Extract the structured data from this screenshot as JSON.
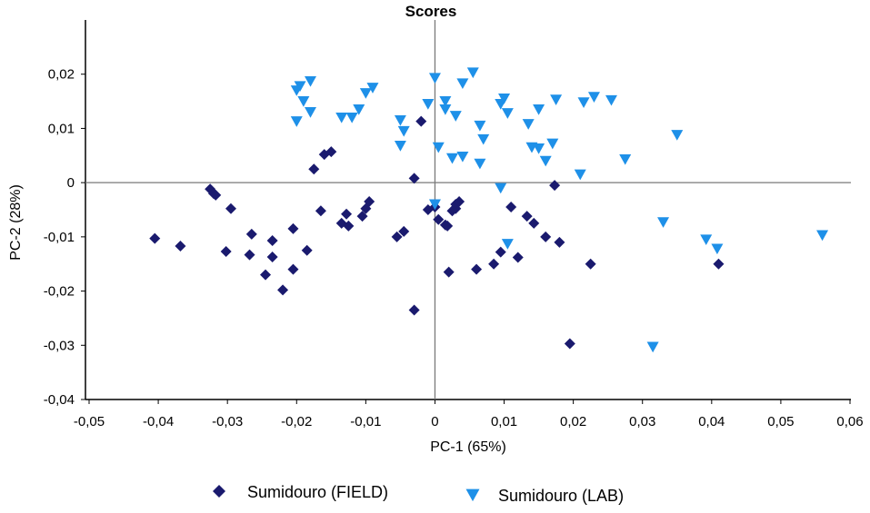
{
  "chart_data": {
    "type": "scatter",
    "title": "Scores",
    "xlabel": "PC-1 (65%)",
    "ylabel": "PC-2 (28%)",
    "xlim": [
      -0.05,
      0.06
    ],
    "ylim": [
      -0.04,
      0.03
    ],
    "x_ticks": [
      -0.05,
      -0.04,
      -0.03,
      -0.02,
      -0.01,
      0,
      0.01,
      0.02,
      0.03,
      0.04,
      0.05,
      0.06
    ],
    "x_tick_labels": [
      "-0,05",
      "-0,04",
      "-0,03",
      "-0,02",
      "-0,01",
      "0",
      "0,01",
      "0,02",
      "0,03",
      "0,04",
      "0,05",
      "0,06"
    ],
    "y_ticks": [
      -0.04,
      -0.03,
      -0.02,
      -0.01,
      0,
      0.01,
      0.02
    ],
    "y_tick_labels": [
      "-0,04",
      "-0,03",
      "-0,02",
      "-0,01",
      "0",
      "0,01",
      "0,02"
    ],
    "grid": false,
    "zero_lines": true,
    "legend_position": "bottom",
    "series": [
      {
        "name": "Sumidouro (FIELD)",
        "marker": "diamond",
        "color": "#1a1a6e",
        "points": [
          [
            -0.0405,
            -0.0103
          ],
          [
            -0.0368,
            -0.0117
          ],
          [
            -0.0325,
            -0.0012
          ],
          [
            -0.032,
            -0.002
          ],
          [
            -0.0317,
            -0.0023
          ],
          [
            -0.0295,
            -0.0048
          ],
          [
            -0.0302,
            -0.0127
          ],
          [
            -0.0265,
            -0.0095
          ],
          [
            -0.0268,
            -0.0133
          ],
          [
            -0.0245,
            -0.017
          ],
          [
            -0.0235,
            -0.0107
          ],
          [
            -0.0235,
            -0.0137
          ],
          [
            -0.022,
            -0.0198
          ],
          [
            -0.0205,
            -0.0085
          ],
          [
            -0.0205,
            -0.016
          ],
          [
            -0.0185,
            -0.0125
          ],
          [
            -0.0175,
            0.0025
          ],
          [
            -0.0165,
            -0.0052
          ],
          [
            -0.016,
            0.0052
          ],
          [
            -0.015,
            0.0057
          ],
          [
            -0.0135,
            -0.0075
          ],
          [
            -0.0128,
            -0.0058
          ],
          [
            -0.0125,
            -0.008
          ],
          [
            -0.0105,
            -0.0062
          ],
          [
            -0.01,
            -0.0048
          ],
          [
            -0.0095,
            -0.0035
          ],
          [
            -0.0055,
            -0.01
          ],
          [
            -0.0045,
            -0.009
          ],
          [
            -0.003,
            0.0008
          ],
          [
            -0.003,
            -0.0235
          ],
          [
            -0.002,
            0.0113
          ],
          [
            -0.001,
            -0.005
          ],
          [
            0.0,
            -0.0045
          ],
          [
            0.0005,
            -0.0068
          ],
          [
            0.0015,
            -0.0078
          ],
          [
            0.0018,
            -0.008
          ],
          [
            0.002,
            -0.0165
          ],
          [
            0.0025,
            -0.0052
          ],
          [
            0.003,
            -0.0048
          ],
          [
            0.003,
            -0.004
          ],
          [
            0.0035,
            -0.0035
          ],
          [
            0.006,
            -0.016
          ],
          [
            0.0085,
            -0.015
          ],
          [
            0.0095,
            -0.0128
          ],
          [
            0.011,
            -0.0045
          ],
          [
            0.012,
            -0.0138
          ],
          [
            0.0133,
            -0.0062
          ],
          [
            0.0143,
            -0.0075
          ],
          [
            0.016,
            -0.01
          ],
          [
            0.0173,
            -0.0005
          ],
          [
            0.018,
            -0.011
          ],
          [
            0.0195,
            -0.0297
          ],
          [
            0.0225,
            -0.015
          ],
          [
            0.041,
            -0.015
          ]
        ]
      },
      {
        "name": "Sumidouro (LAB)",
        "marker": "triangle-down",
        "color": "#1e90e8",
        "points": [
          [
            -0.02,
            0.017
          ],
          [
            -0.0195,
            0.0178
          ],
          [
            -0.019,
            0.015
          ],
          [
            -0.018,
            0.0187
          ],
          [
            -0.02,
            0.0113
          ],
          [
            -0.018,
            0.013
          ],
          [
            -0.0135,
            0.012
          ],
          [
            -0.012,
            0.012
          ],
          [
            -0.011,
            0.0135
          ],
          [
            -0.01,
            0.0165
          ],
          [
            -0.009,
            0.0175
          ],
          [
            -0.005,
            0.0115
          ],
          [
            -0.0045,
            0.0095
          ],
          [
            -0.005,
            0.0068
          ],
          [
            -0.001,
            0.0145
          ],
          [
            0.0,
            0.0193
          ],
          [
            0.0005,
            0.0065
          ],
          [
            0.0015,
            0.015
          ],
          [
            0.0015,
            0.0135
          ],
          [
            0.0025,
            0.0045
          ],
          [
            0.003,
            0.0123
          ],
          [
            0.004,
            0.0183
          ],
          [
            0.004,
            0.0048
          ],
          [
            0.0055,
            0.0203
          ],
          [
            0.0065,
            0.0105
          ],
          [
            0.007,
            0.008
          ],
          [
            0.0065,
            0.0035
          ],
          [
            0.0095,
            0.0145
          ],
          [
            0.01,
            0.0155
          ],
          [
            0.0105,
            0.0128
          ],
          [
            0.0095,
            -0.001
          ],
          [
            0.0105,
            -0.0113
          ],
          [
            0.0135,
            0.0108
          ],
          [
            0.014,
            0.0065
          ],
          [
            0.015,
            0.0063
          ],
          [
            0.015,
            0.0135
          ],
          [
            0.016,
            0.004
          ],
          [
            0.017,
            0.0072
          ],
          [
            0.0175,
            0.0153
          ],
          [
            0.021,
            0.0015
          ],
          [
            0.0215,
            0.0148
          ],
          [
            0.023,
            0.0158
          ],
          [
            0.0255,
            0.0152
          ],
          [
            0.0275,
            0.0043
          ],
          [
            0.0315,
            -0.0303
          ],
          [
            0.033,
            -0.0073
          ],
          [
            0.035,
            0.0088
          ],
          [
            0.0392,
            -0.0105
          ],
          [
            0.0408,
            -0.0122
          ],
          [
            0.056,
            -0.0097
          ],
          [
            0.0,
            -0.004
          ]
        ]
      }
    ]
  }
}
